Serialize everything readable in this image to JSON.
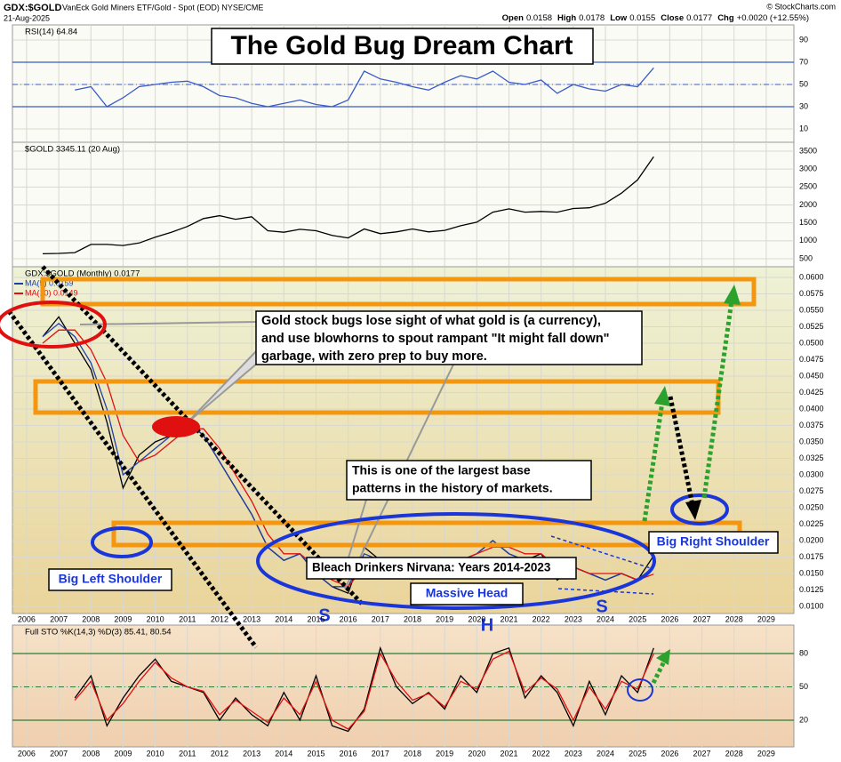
{
  "header": {
    "symbol": "GDX:$GOLD",
    "description": "VanEck Gold Miners ETF/Gold - Spot (EOD) NYSE/CME",
    "date": "21-Aug-2025",
    "source": "© StockCharts.com",
    "quote": [
      {
        "label": "Open",
        "value": "0.0158"
      },
      {
        "label": "High",
        "value": "0.0178"
      },
      {
        "label": "Low",
        "value": "0.0155"
      },
      {
        "label": "Close",
        "value": "0.0177"
      },
      {
        "label": "Chg",
        "value": "+0.0020 (+12.55%)"
      }
    ]
  },
  "annotations": {
    "title": "The Gold Bug Dream Chart",
    "callout": [
      "Gold stock bugs lose sight of what gold is (a currency),",
      "and use blowhorns to spout rampant \"It might fall down\"",
      "garbage, with zero prep to buy more."
    ],
    "base_note": [
      "This is one of the largest base",
      "patterns in the history of markets."
    ],
    "nirvana": "Bleach Drinkers Nirvana: Years 2014-2023",
    "head": "Massive Head",
    "left_shoulder": "Big Left Shoulder",
    "right_shoulder": "Big Right Shoulder",
    "left_s": "S",
    "h": "H",
    "right_s": "S"
  },
  "chart_data": [
    {
      "type": "line",
      "title": "RSI(14) 64.84",
      "color": "#3a5bc7",
      "x": [
        2007.5,
        2008,
        2008.5,
        2009,
        2009.5,
        2010,
        2010.5,
        2011,
        2011.5,
        2012,
        2012.5,
        2013,
        2013.5,
        2014,
        2014.5,
        2015,
        2015.5,
        2016,
        2016.5,
        2017,
        2017.5,
        2018,
        2018.5,
        2019,
        2019.5,
        2020,
        2020.5,
        2021,
        2021.5,
        2022,
        2022.5,
        2023,
        2023.5,
        2024,
        2024.5,
        2025,
        2025.5
      ],
      "values": [
        45,
        48,
        30,
        38,
        48,
        50,
        52,
        53,
        48,
        40,
        38,
        33,
        30,
        33,
        36,
        32,
        30,
        36,
        62,
        55,
        52,
        48,
        45,
        52,
        58,
        55,
        62,
        52,
        50,
        54,
        42,
        50,
        46,
        44,
        50,
        48,
        65
      ],
      "xlim": [
        2005.56,
        2029.86
      ],
      "ylim": [
        -2,
        103.6
      ],
      "yticks": [
        10,
        30,
        50,
        70,
        90
      ],
      "bands": [
        30,
        70
      ],
      "midline": 50
    },
    {
      "type": "line",
      "title": "$GOLD 3345.11 (20 Aug)",
      "color": "#000000",
      "x": [
        2006.5,
        2007,
        2007.5,
        2008,
        2008.5,
        2009,
        2009.5,
        2010,
        2010.5,
        2011,
        2011.5,
        2012,
        2012.5,
        2013,
        2013.5,
        2014,
        2014.5,
        2015,
        2015.5,
        2016,
        2016.5,
        2017,
        2017.5,
        2018,
        2018.5,
        2019,
        2019.5,
        2020,
        2020.5,
        2021,
        2021.5,
        2022,
        2022.5,
        2023,
        2023.5,
        2024,
        2024.5,
        2025,
        2025.5
      ],
      "values": [
        640,
        650,
        670,
        900,
        900,
        870,
        940,
        1100,
        1240,
        1400,
        1620,
        1700,
        1600,
        1670,
        1280,
        1240,
        1320,
        1280,
        1150,
        1080,
        1330,
        1200,
        1250,
        1330,
        1250,
        1290,
        1420,
        1520,
        1800,
        1890,
        1800,
        1820,
        1800,
        1900,
        1920,
        2050,
        2330,
        2700,
        3345
      ],
      "xlim": [
        2005.56,
        2029.86
      ],
      "ylim": [
        277,
        3748
      ],
      "yticks": [
        500,
        1000,
        1500,
        2000,
        2500,
        3000,
        3500
      ]
    },
    {
      "type": "line",
      "title": "GDX:$GOLD (Monthly) 0.0177",
      "x": [
        2006.5,
        2007,
        2007.5,
        2008,
        2008.5,
        2009,
        2009.5,
        2010,
        2010.5,
        2011,
        2011.5,
        2012,
        2012.5,
        2013,
        2013.5,
        2014,
        2014.5,
        2015,
        2015.5,
        2016,
        2016.5,
        2017,
        2017.5,
        2018,
        2018.5,
        2019,
        2019.5,
        2020,
        2020.5,
        2021,
        2021.5,
        2022,
        2022.5,
        2023,
        2023.5,
        2024,
        2024.5,
        2025,
        2025.5
      ],
      "series": [
        {
          "color": "#000000",
          "values": [
            0.051,
            0.054,
            0.05,
            0.046,
            0.038,
            0.028,
            0.033,
            0.035,
            0.036,
            0.038,
            0.036,
            0.032,
            0.028,
            0.024,
            0.019,
            0.017,
            0.018,
            0.015,
            0.013,
            0.012,
            0.019,
            0.017,
            0.017,
            0.016,
            0.015,
            0.016,
            0.017,
            0.018,
            0.02,
            0.018,
            0.017,
            0.018,
            0.014,
            0.016,
            0.015,
            0.014,
            0.015,
            0.014,
            0.0177
          ]
        },
        {
          "name": "MA(5) 0.0159",
          "color": "#1f3fa8",
          "values": [
            0.051,
            0.053,
            0.051,
            0.047,
            0.04,
            0.03,
            0.032,
            0.034,
            0.036,
            0.038,
            0.036,
            0.032,
            0.028,
            0.024,
            0.019,
            0.017,
            0.018,
            0.015,
            0.013,
            0.013,
            0.018,
            0.017,
            0.017,
            0.016,
            0.015,
            0.016,
            0.017,
            0.018,
            0.02,
            0.018,
            0.017,
            0.017,
            0.015,
            0.016,
            0.015,
            0.014,
            0.015,
            0.014,
            0.0159
          ]
        },
        {
          "name": "MA(10) 0.0149",
          "color": "#e01010",
          "values": [
            0.05,
            0.052,
            0.052,
            0.049,
            0.044,
            0.036,
            0.032,
            0.033,
            0.035,
            0.037,
            0.037,
            0.034,
            0.03,
            0.026,
            0.021,
            0.018,
            0.018,
            0.016,
            0.014,
            0.013,
            0.016,
            0.017,
            0.017,
            0.016,
            0.016,
            0.016,
            0.017,
            0.018,
            0.019,
            0.019,
            0.018,
            0.018,
            0.016,
            0.016,
            0.015,
            0.015,
            0.015,
            0.014,
            0.0149
          ]
        }
      ],
      "xlim": [
        2005.56,
        2029.86
      ],
      "ylim": [
        0.00892,
        0.06162
      ],
      "xticks": [
        2006,
        2007,
        2008,
        2009,
        2010,
        2011,
        2012,
        2013,
        2014,
        2015,
        2016,
        2017,
        2018,
        2019,
        2020,
        2021,
        2022,
        2023,
        2024,
        2025,
        2026,
        2027,
        2028,
        2029
      ],
      "yticks": [
        {
          "value": 0.01,
          "label": "0.0100"
        },
        {
          "value": 0.0125,
          "label": "0.0125"
        },
        {
          "value": 0.015,
          "label": "0.0150"
        },
        {
          "value": 0.0175,
          "label": "0.0175"
        },
        {
          "value": 0.02,
          "label": "0.0200"
        },
        {
          "value": 0.0225,
          "label": "0.0225"
        },
        {
          "value": 0.025,
          "label": "0.0250"
        },
        {
          "value": 0.0275,
          "label": "0.0275"
        },
        {
          "value": 0.03,
          "label": "0.0300"
        },
        {
          "value": 0.0325,
          "label": "0.0325"
        },
        {
          "value": 0.035,
          "label": "0.0350"
        },
        {
          "value": 0.0375,
          "label": "0.0375"
        },
        {
          "value": 0.04,
          "label": "0.0400"
        },
        {
          "value": 0.0425,
          "label": "0.0425"
        },
        {
          "value": 0.045,
          "label": "0.0450"
        },
        {
          "value": 0.0475,
          "label": "0.0475"
        },
        {
          "value": 0.05,
          "label": "0.0500"
        },
        {
          "value": 0.0525,
          "label": "0.0525"
        },
        {
          "value": 0.055,
          "label": "0.0550"
        },
        {
          "value": 0.0575,
          "label": "0.0575"
        },
        {
          "value": 0.06,
          "label": "0.0600"
        }
      ]
    },
    {
      "type": "line",
      "title": "Full STO %K(14,3) %D(3) 85.41, 80.54",
      "x": [
        2007.5,
        2008,
        2008.5,
        2009,
        2009.5,
        2010,
        2010.5,
        2011,
        2011.5,
        2012,
        2012.5,
        2013,
        2013.5,
        2014,
        2014.5,
        2015,
        2015.5,
        2016,
        2016.5,
        2017,
        2017.5,
        2018,
        2018.5,
        2019,
        2019.5,
        2020,
        2020.5,
        2021,
        2021.5,
        2022,
        2022.5,
        2023,
        2023.5,
        2024,
        2024.5,
        2025,
        2025.5
      ],
      "series": [
        {
          "color": "#000000",
          "values": [
            40,
            60,
            15,
            40,
            60,
            75,
            55,
            50,
            45,
            20,
            40,
            25,
            15,
            45,
            20,
            60,
            15,
            10,
            30,
            85,
            50,
            35,
            45,
            30,
            60,
            45,
            80,
            85,
            40,
            60,
            45,
            15,
            55,
            25,
            60,
            45,
            85
          ]
        },
        {
          "color": "#e01010",
          "values": [
            38,
            55,
            20,
            35,
            55,
            72,
            58,
            50,
            46,
            25,
            38,
            28,
            18,
            40,
            25,
            55,
            20,
            12,
            28,
            80,
            55,
            38,
            44,
            32,
            55,
            48,
            75,
            82,
            45,
            58,
            48,
            20,
            50,
            30,
            55,
            48,
            80
          ]
        }
      ],
      "xlim": [
        2005.56,
        2029.86
      ],
      "ylim": [
        -4,
        105.6
      ],
      "yticks": [
        20,
        50,
        80
      ],
      "bands": [
        20,
        80
      ],
      "midline": 50,
      "xticks": [
        2006,
        2007,
        2008,
        2009,
        2010,
        2011,
        2012,
        2013,
        2014,
        2015,
        2016,
        2017,
        2018,
        2019,
        2020,
        2021,
        2022,
        2023,
        2024,
        2025,
        2026,
        2027,
        2028,
        2029
      ]
    }
  ]
}
